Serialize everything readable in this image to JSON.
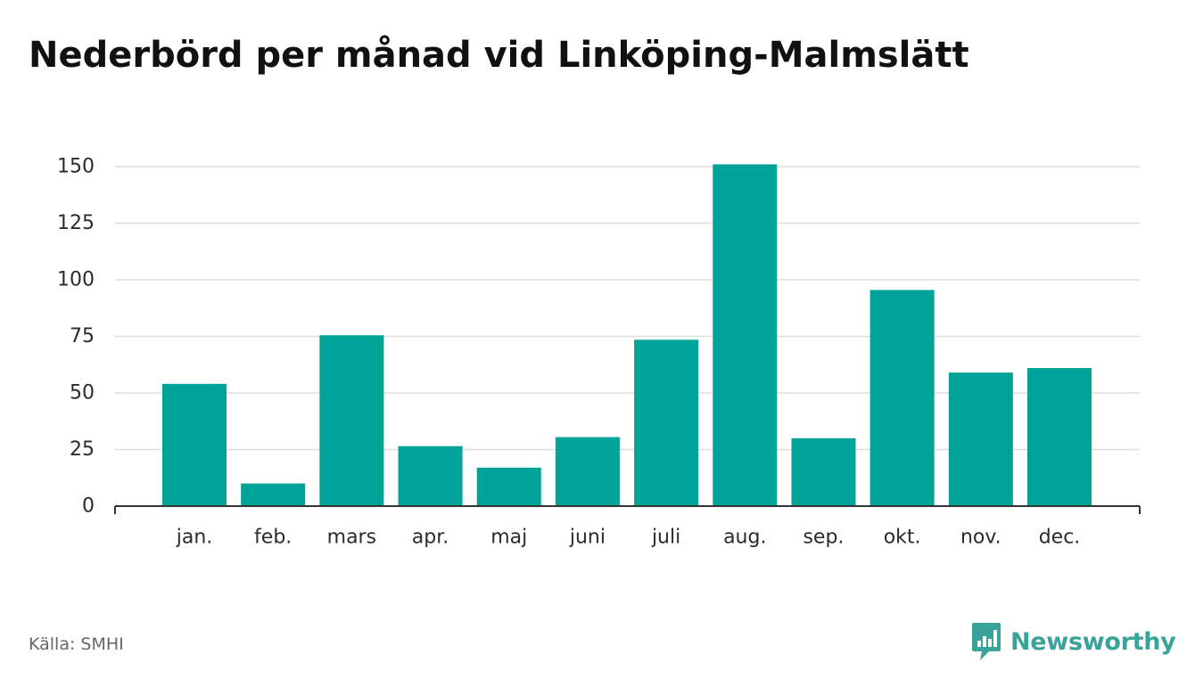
{
  "title": "Nederbörd per månad vid Linköping-Malmslätt",
  "source": "Källa: SMHI",
  "brand": {
    "name": "Newsworthy",
    "icon": "newsworthy-logo-icon",
    "color": "#3aa399"
  },
  "colors": {
    "bar": "#00a398",
    "grid": "#dddddd",
    "axis": "#333333"
  },
  "chart_data": {
    "type": "bar",
    "categories": [
      "jan.",
      "feb.",
      "mars",
      "apr.",
      "maj",
      "juni",
      "juli",
      "aug.",
      "sep.",
      "okt.",
      "nov.",
      "dec."
    ],
    "series": [
      {
        "values": [
          54,
          10,
          75.5,
          26.5,
          17,
          30.5,
          73.5,
          151,
          30,
          95.5,
          59,
          61
        ]
      }
    ],
    "yticks": [
      0,
      25,
      50,
      75,
      100,
      125,
      150
    ],
    "ylim": [
      0,
      150
    ],
    "xlabel": "",
    "ylabel": "",
    "grid": true,
    "legend": "none"
  }
}
